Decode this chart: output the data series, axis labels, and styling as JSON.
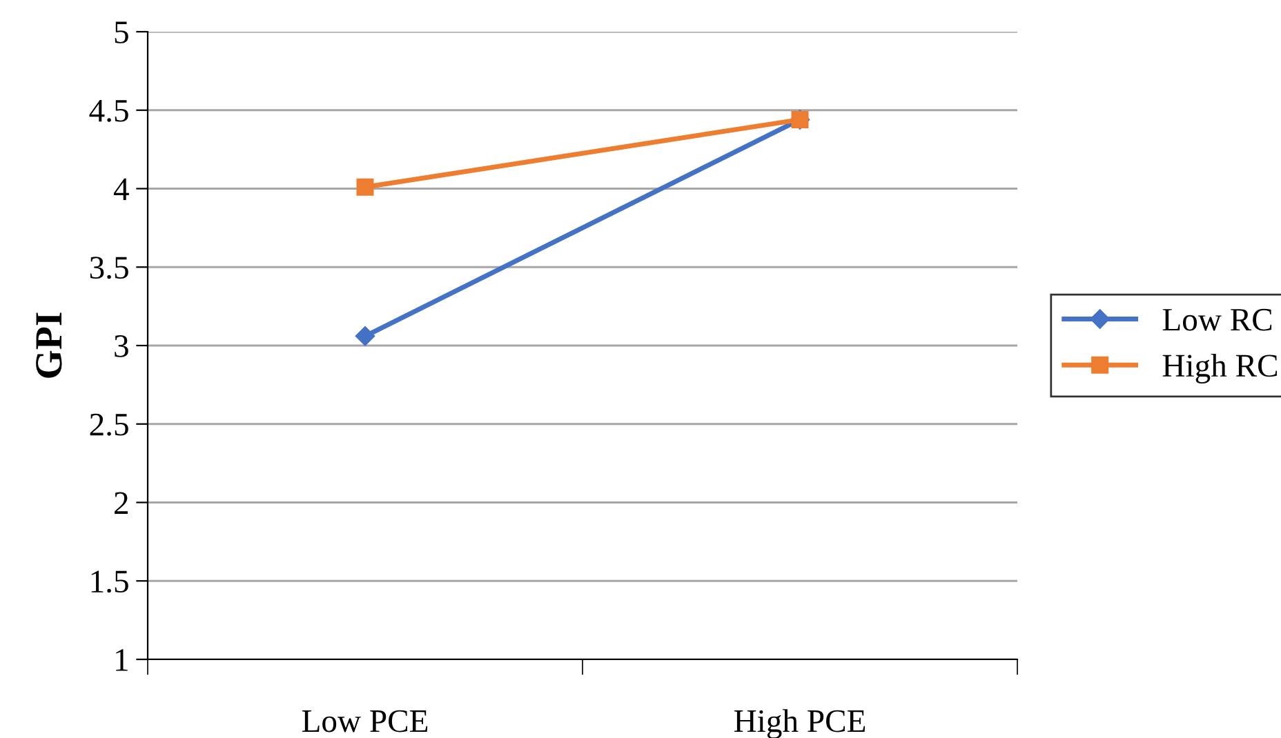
{
  "chart_data": {
    "type": "line",
    "ylabel": "GPI",
    "categories": [
      "Low PCE",
      "High PCE"
    ],
    "series": [
      {
        "name": "Low RC",
        "color": "#4472c4",
        "marker": "diamond",
        "values": [
          3.06,
          4.44
        ]
      },
      {
        "name": "High RC",
        "color": "#ed7d31",
        "marker": "square",
        "values": [
          4.01,
          4.44
        ]
      }
    ],
    "ylim": [
      1,
      5
    ],
    "yticks": [
      1,
      1.5,
      2,
      2.5,
      3,
      3.5,
      4,
      4.5,
      5
    ],
    "grid": "y",
    "legend": "right",
    "line_style": "solid"
  }
}
